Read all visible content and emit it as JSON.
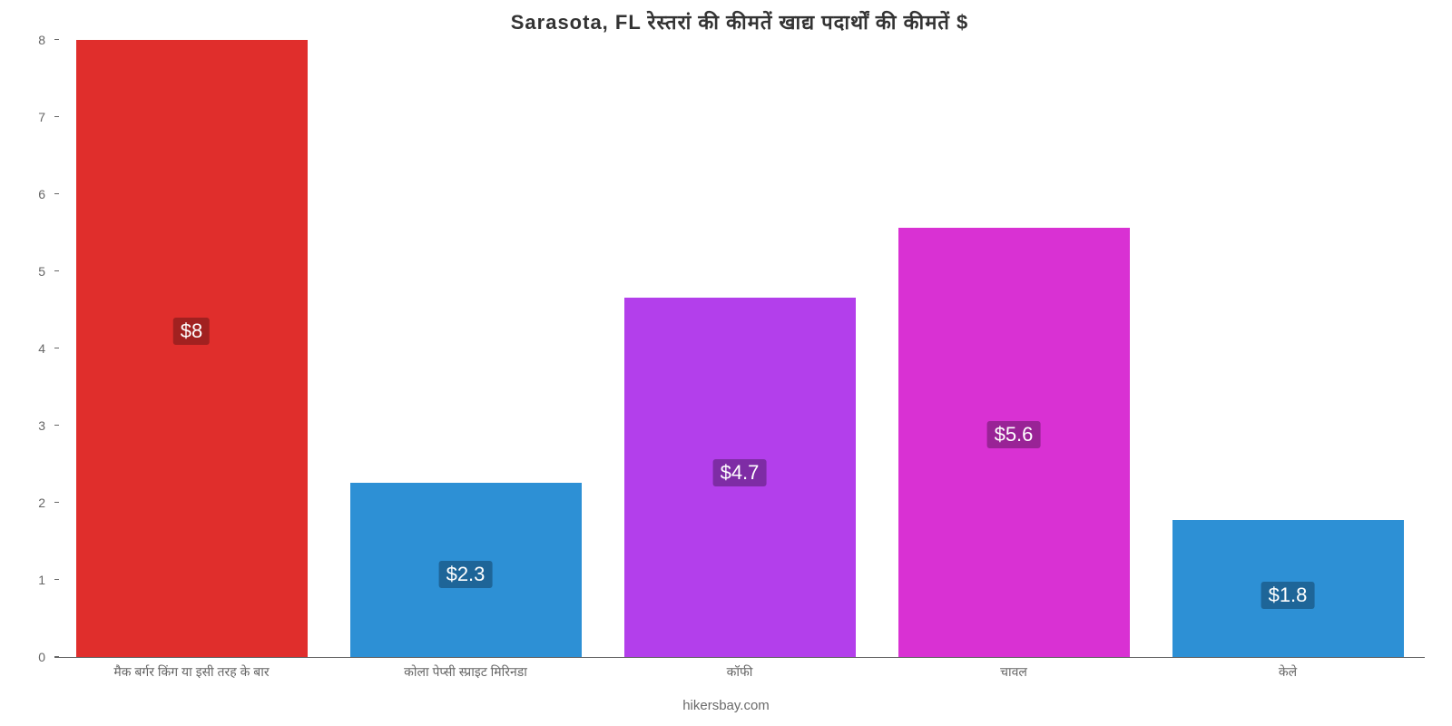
{
  "chart": {
    "type": "bar",
    "title": "Sarasota, FL रेस्तरां    की    कीमतें    खाद्य    पदार्थों    की    कीमतें    $",
    "title_fontsize": 22,
    "title_color": "#333333",
    "background_color": "#ffffff",
    "axis_color": "#666666",
    "ylim_min": 0,
    "ylim_max": 8,
    "ytick_step": 1,
    "yticks": [
      {
        "v": 0,
        "label": "0"
      },
      {
        "v": 1,
        "label": "1"
      },
      {
        "v": 2,
        "label": "2"
      },
      {
        "v": 3,
        "label": "3"
      },
      {
        "v": 4,
        "label": "4"
      },
      {
        "v": 5,
        "label": "5"
      },
      {
        "v": 6,
        "label": "6"
      },
      {
        "v": 7,
        "label": "7"
      },
      {
        "v": 8,
        "label": "8"
      }
    ],
    "bar_width_ratio": 0.85,
    "label_fontsize": 14,
    "label_color": "#666666",
    "value_label_fontsize": 22,
    "value_label_text_color": "#ffffff",
    "bars": [
      {
        "category": "मैक बर्गर किंग या इसी तरह के बार",
        "value": 8.0,
        "display": "$8",
        "fill": "#e02e2c",
        "badge_bg": "#a12120"
      },
      {
        "category": "कोला पेप्सी स्प्राइट मिरिनडा",
        "value": 2.26,
        "display": "$2.3",
        "fill": "#2d90d5",
        "badge_bg": "#1e6598"
      },
      {
        "category": "कॉफी",
        "value": 4.66,
        "display": "$4.7",
        "fill": "#b33feb",
        "badge_bg": "#7e2ca5"
      },
      {
        "category": "चावल",
        "value": 5.56,
        "display": "$5.6",
        "fill": "#d931d3",
        "badge_bg": "#992396"
      },
      {
        "category": "केले",
        "value": 1.78,
        "display": "$1.8",
        "fill": "#2d90d5",
        "badge_bg": "#1e6598"
      }
    ],
    "watermark": "hikersbay.com",
    "watermark_color": "#6a6a6a"
  }
}
